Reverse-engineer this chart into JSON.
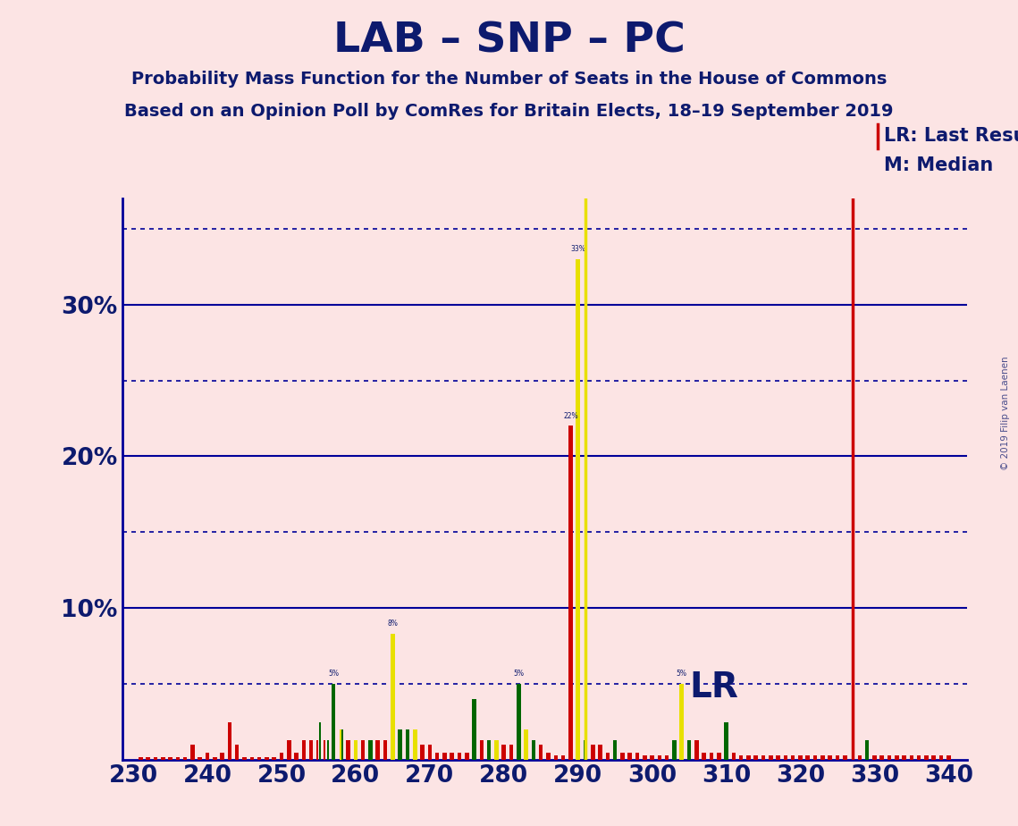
{
  "title": "LAB – SNP – PC",
  "subtitle1": "Probability Mass Function for the Number of Seats in the House of Commons",
  "subtitle2": "Based on an Opinion Poll by ComRes for Britain Elects, 18–19 September 2019",
  "watermark": "© 2019 Filip van Laenen",
  "background_color": "#fce4e4",
  "title_color": "#0d1a6e",
  "xmin": 228.5,
  "xmax": 342.5,
  "ymin": 0,
  "ymax": 0.37,
  "xticks": [
    230,
    240,
    250,
    260,
    270,
    280,
    290,
    300,
    310,
    320,
    330,
    340
  ],
  "ytick_positions": [
    0.0,
    0.05,
    0.1,
    0.15,
    0.2,
    0.25,
    0.3,
    0.35
  ],
  "ytick_labels": [
    "",
    "",
    "10%",
    "",
    "20%",
    "",
    "30%",
    ""
  ],
  "last_result_seat": 327,
  "median_seat": 291,
  "legend_lr": "LR: Last Result",
  "legend_m": "M: Median",
  "lr_line_color": "#cc0000",
  "median_line_color": "#e8e000",
  "bar_red": "#cc0000",
  "bar_yellow": "#e8e000",
  "bar_green": "#006600",
  "dotted_color": "#000099",
  "solid_color": "#000099",
  "lr_label_seat": 305,
  "lr_label_prob": 0.048,
  "seat_probs": [
    {
      "seat": 231,
      "color": "red",
      "prob": 0.002
    },
    {
      "seat": 232,
      "color": "red",
      "prob": 0.002
    },
    {
      "seat": 233,
      "color": "red",
      "prob": 0.002
    },
    {
      "seat": 234,
      "color": "red",
      "prob": 0.002
    },
    {
      "seat": 235,
      "color": "red",
      "prob": 0.002
    },
    {
      "seat": 236,
      "color": "red",
      "prob": 0.002
    },
    {
      "seat": 237,
      "color": "red",
      "prob": 0.002
    },
    {
      "seat": 238,
      "color": "red",
      "prob": 0.01
    },
    {
      "seat": 239,
      "color": "red",
      "prob": 0.002
    },
    {
      "seat": 240,
      "color": "red",
      "prob": 0.005
    },
    {
      "seat": 241,
      "color": "red",
      "prob": 0.002
    },
    {
      "seat": 242,
      "color": "red",
      "prob": 0.005
    },
    {
      "seat": 243,
      "color": "red",
      "prob": 0.025
    },
    {
      "seat": 244,
      "color": "red",
      "prob": 0.01
    },
    {
      "seat": 245,
      "color": "red",
      "prob": 0.002
    },
    {
      "seat": 246,
      "color": "red",
      "prob": 0.002
    },
    {
      "seat": 247,
      "color": "red",
      "prob": 0.002
    },
    {
      "seat": 248,
      "color": "red",
      "prob": 0.002
    },
    {
      "seat": 249,
      "color": "red",
      "prob": 0.002
    },
    {
      "seat": 250,
      "color": "red",
      "prob": 0.005
    },
    {
      "seat": 251,
      "color": "red",
      "prob": 0.013
    },
    {
      "seat": 252,
      "color": "red",
      "prob": 0.005
    },
    {
      "seat": 253,
      "color": "red",
      "prob": 0.013
    },
    {
      "seat": 254,
      "color": "red",
      "prob": 0.013
    },
    {
      "seat": 255,
      "color": "red",
      "prob": 0.013
    },
    {
      "seat": 255,
      "color": "green",
      "prob": 0.025
    },
    {
      "seat": 256,
      "color": "red",
      "prob": 0.013
    },
    {
      "seat": 256,
      "color": "green",
      "prob": 0.013
    },
    {
      "seat": 257,
      "color": "green",
      "prob": 0.05
    },
    {
      "seat": 258,
      "color": "yellow",
      "prob": 0.02
    },
    {
      "seat": 258,
      "color": "green",
      "prob": 0.02
    },
    {
      "seat": 259,
      "color": "red",
      "prob": 0.013
    },
    {
      "seat": 260,
      "color": "yellow",
      "prob": 0.013
    },
    {
      "seat": 261,
      "color": "red",
      "prob": 0.013
    },
    {
      "seat": 262,
      "color": "green",
      "prob": 0.013
    },
    {
      "seat": 263,
      "color": "red",
      "prob": 0.013
    },
    {
      "seat": 264,
      "color": "red",
      "prob": 0.013
    },
    {
      "seat": 265,
      "color": "yellow",
      "prob": 0.083
    },
    {
      "seat": 266,
      "color": "green",
      "prob": 0.02
    },
    {
      "seat": 267,
      "color": "green",
      "prob": 0.02
    },
    {
      "seat": 268,
      "color": "yellow",
      "prob": 0.02
    },
    {
      "seat": 269,
      "color": "red",
      "prob": 0.01
    },
    {
      "seat": 270,
      "color": "red",
      "prob": 0.01
    },
    {
      "seat": 271,
      "color": "red",
      "prob": 0.005
    },
    {
      "seat": 272,
      "color": "red",
      "prob": 0.005
    },
    {
      "seat": 273,
      "color": "red",
      "prob": 0.005
    },
    {
      "seat": 274,
      "color": "red",
      "prob": 0.005
    },
    {
      "seat": 275,
      "color": "red",
      "prob": 0.005
    },
    {
      "seat": 276,
      "color": "green",
      "prob": 0.04
    },
    {
      "seat": 277,
      "color": "red",
      "prob": 0.013
    },
    {
      "seat": 278,
      "color": "green",
      "prob": 0.013
    },
    {
      "seat": 279,
      "color": "yellow",
      "prob": 0.013
    },
    {
      "seat": 280,
      "color": "red",
      "prob": 0.01
    },
    {
      "seat": 281,
      "color": "red",
      "prob": 0.01
    },
    {
      "seat": 282,
      "color": "green",
      "prob": 0.05
    },
    {
      "seat": 283,
      "color": "yellow",
      "prob": 0.02
    },
    {
      "seat": 284,
      "color": "green",
      "prob": 0.013
    },
    {
      "seat": 285,
      "color": "red",
      "prob": 0.01
    },
    {
      "seat": 286,
      "color": "red",
      "prob": 0.005
    },
    {
      "seat": 287,
      "color": "red",
      "prob": 0.003
    },
    {
      "seat": 288,
      "color": "red",
      "prob": 0.003
    },
    {
      "seat": 289,
      "color": "red",
      "prob": 0.22
    },
    {
      "seat": 290,
      "color": "yellow",
      "prob": 0.33
    },
    {
      "seat": 291,
      "color": "green",
      "prob": 0.013
    },
    {
      "seat": 292,
      "color": "red",
      "prob": 0.01
    },
    {
      "seat": 293,
      "color": "red",
      "prob": 0.01
    },
    {
      "seat": 294,
      "color": "red",
      "prob": 0.005
    },
    {
      "seat": 295,
      "color": "green",
      "prob": 0.013
    },
    {
      "seat": 296,
      "color": "red",
      "prob": 0.005
    },
    {
      "seat": 297,
      "color": "red",
      "prob": 0.005
    },
    {
      "seat": 298,
      "color": "red",
      "prob": 0.005
    },
    {
      "seat": 299,
      "color": "red",
      "prob": 0.003
    },
    {
      "seat": 300,
      "color": "red",
      "prob": 0.003
    },
    {
      "seat": 301,
      "color": "red",
      "prob": 0.003
    },
    {
      "seat": 302,
      "color": "red",
      "prob": 0.003
    },
    {
      "seat": 303,
      "color": "green",
      "prob": 0.013
    },
    {
      "seat": 304,
      "color": "yellow",
      "prob": 0.05
    },
    {
      "seat": 305,
      "color": "green",
      "prob": 0.013
    },
    {
      "seat": 306,
      "color": "red",
      "prob": 0.013
    },
    {
      "seat": 307,
      "color": "red",
      "prob": 0.005
    },
    {
      "seat": 308,
      "color": "red",
      "prob": 0.005
    },
    {
      "seat": 309,
      "color": "red",
      "prob": 0.005
    },
    {
      "seat": 310,
      "color": "green",
      "prob": 0.025
    },
    {
      "seat": 311,
      "color": "red",
      "prob": 0.005
    },
    {
      "seat": 312,
      "color": "red",
      "prob": 0.003
    },
    {
      "seat": 313,
      "color": "red",
      "prob": 0.003
    },
    {
      "seat": 314,
      "color": "red",
      "prob": 0.003
    },
    {
      "seat": 315,
      "color": "red",
      "prob": 0.003
    },
    {
      "seat": 316,
      "color": "red",
      "prob": 0.003
    },
    {
      "seat": 317,
      "color": "red",
      "prob": 0.003
    },
    {
      "seat": 318,
      "color": "red",
      "prob": 0.003
    },
    {
      "seat": 319,
      "color": "red",
      "prob": 0.003
    },
    {
      "seat": 320,
      "color": "red",
      "prob": 0.003
    },
    {
      "seat": 321,
      "color": "red",
      "prob": 0.003
    },
    {
      "seat": 322,
      "color": "red",
      "prob": 0.003
    },
    {
      "seat": 323,
      "color": "red",
      "prob": 0.003
    },
    {
      "seat": 324,
      "color": "red",
      "prob": 0.003
    },
    {
      "seat": 325,
      "color": "red",
      "prob": 0.003
    },
    {
      "seat": 326,
      "color": "red",
      "prob": 0.003
    },
    {
      "seat": 328,
      "color": "red",
      "prob": 0.003
    },
    {
      "seat": 329,
      "color": "green",
      "prob": 0.013
    },
    {
      "seat": 330,
      "color": "red",
      "prob": 0.003
    },
    {
      "seat": 331,
      "color": "red",
      "prob": 0.003
    },
    {
      "seat": 332,
      "color": "red",
      "prob": 0.003
    },
    {
      "seat": 333,
      "color": "red",
      "prob": 0.003
    },
    {
      "seat": 334,
      "color": "red",
      "prob": 0.003
    },
    {
      "seat": 335,
      "color": "red",
      "prob": 0.003
    },
    {
      "seat": 336,
      "color": "red",
      "prob": 0.003
    },
    {
      "seat": 337,
      "color": "red",
      "prob": 0.003
    },
    {
      "seat": 338,
      "color": "red",
      "prob": 0.003
    },
    {
      "seat": 339,
      "color": "red",
      "prob": 0.003
    },
    {
      "seat": 340,
      "color": "red",
      "prob": 0.003
    }
  ]
}
